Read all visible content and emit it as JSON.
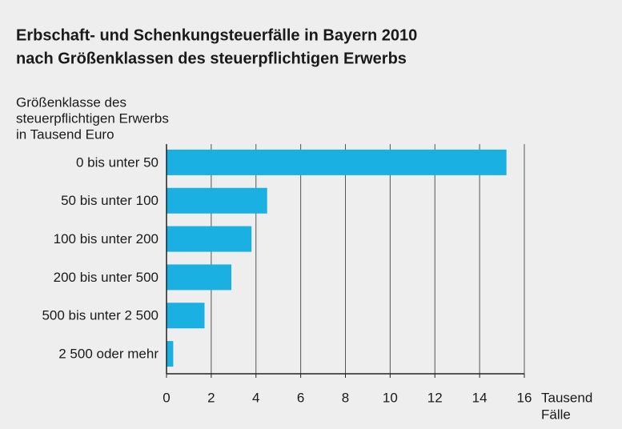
{
  "chart_data": {
    "type": "bar",
    "orientation": "horizontal",
    "title": [
      "Erbschaft- und Schenkungsteuerfälle in Bayern 2010",
      "nach Größenklassen des steuerpflichtigen Erwerbs"
    ],
    "y_label": [
      "Größenklasse des",
      "steuerpflichtigen Erwerbs",
      "in Tausend Euro"
    ],
    "x_label": [
      "Tausend",
      "Fälle"
    ],
    "categories": [
      "0 bis unter 50",
      "50 bis unter 100",
      "100 bis unter 200",
      "200 bis unter 500",
      "500 bis unter 2 500",
      "2 500 oder mehr"
    ],
    "values": [
      15.2,
      4.5,
      3.8,
      2.9,
      1.7,
      0.3
    ],
    "color": "#1ab0e2",
    "xlim": [
      0,
      16
    ],
    "xticks": [
      0,
      2,
      4,
      6,
      8,
      10,
      12,
      14,
      16
    ],
    "grid": true
  }
}
